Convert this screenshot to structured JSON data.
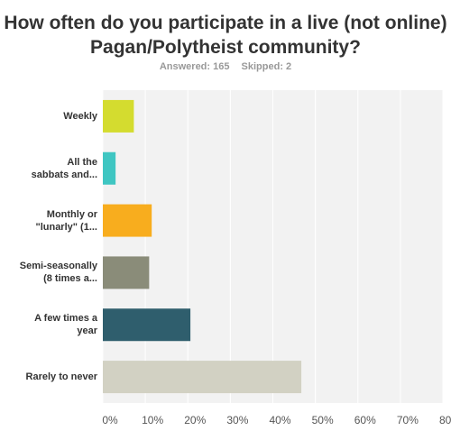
{
  "chart_data": {
    "type": "bar",
    "orientation": "horizontal",
    "title": "How often do you participate in a live (not online) Pagan/Polytheist community?",
    "answered_label": "Answered: 165",
    "skipped_label": "Skipped: 2",
    "categories": [
      "Weekly",
      "All the\nsabbats and...",
      "Monthly or\n\"lunarly\" (1...",
      "Semi-seasonally\n(8 times a...",
      "A few times a\nyear",
      "Rarely to never"
    ],
    "values": [
      7.3,
      3.0,
      11.5,
      10.9,
      20.6,
      46.7
    ],
    "colors": [
      "#d4dc2f",
      "#3fc6c2",
      "#f8ad1e",
      "#8a8c79",
      "#2f5e6d",
      "#d2d1c3"
    ],
    "xlim": [
      0,
      80
    ],
    "xticks": [
      "0%",
      "10%",
      "20%",
      "30%",
      "40%",
      "50%",
      "60%",
      "70%",
      "80%"
    ],
    "grid": true
  }
}
